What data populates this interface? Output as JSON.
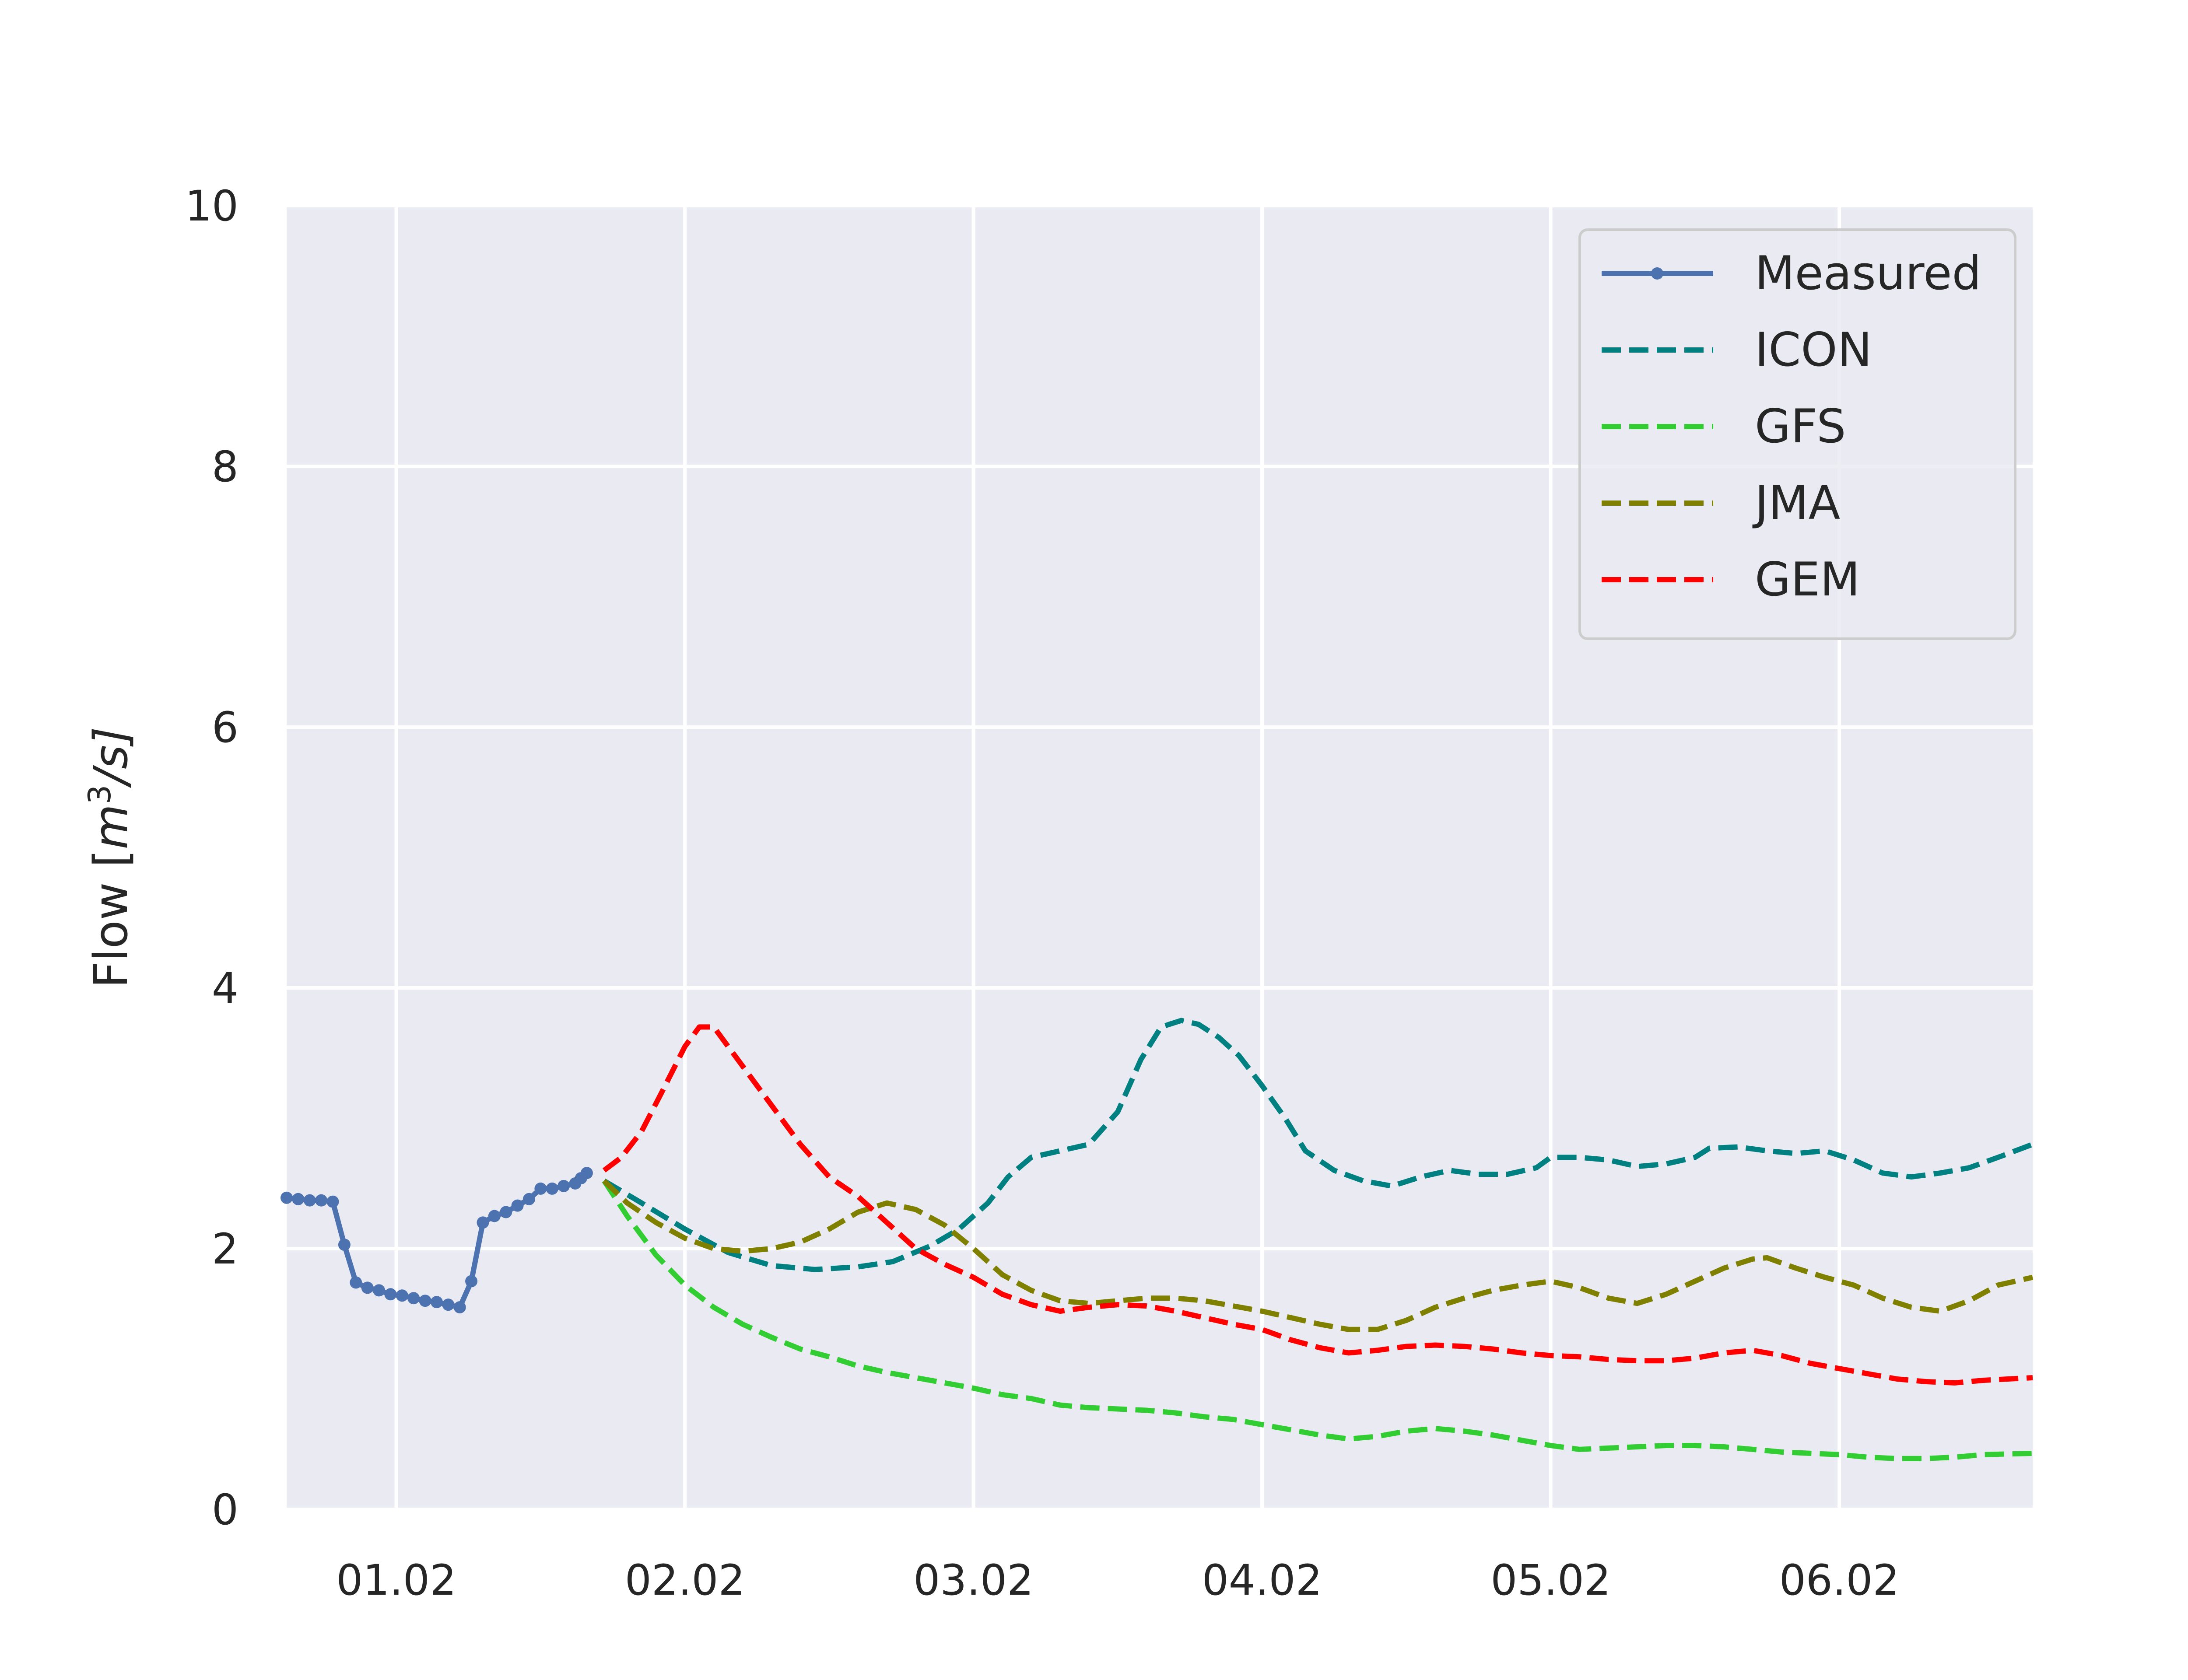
{
  "chart_data": {
    "type": "line",
    "title": "",
    "xlabel": "",
    "ylabel": "Flow [m³/s]",
    "ylabel_parts": {
      "main": "Flow [",
      "m": "m",
      "exp": "3",
      "rest": "/s]"
    },
    "x_unit": "days",
    "xlim": [
      0.62,
      6.67
    ],
    "ylim": [
      0,
      10
    ],
    "grid": true,
    "legend_position": "top-right",
    "xtick_values": [
      1,
      2,
      3,
      4,
      5,
      6
    ],
    "xtick_labels": [
      "01.02",
      "02.02",
      "03.02",
      "04.02",
      "05.02",
      "06.02"
    ],
    "ytick_values": [
      0,
      2,
      4,
      6,
      8,
      10
    ],
    "ytick_labels": [
      "0",
      "2",
      "4",
      "6",
      "8",
      "10"
    ],
    "colors": {
      "background": "#eaeaf2",
      "grid": "#ffffff",
      "text": "#262626"
    },
    "series": [
      {
        "name": "Measured",
        "color": "#4c72b0",
        "style": "solid-markers",
        "x": [
          0.62,
          0.66,
          0.7,
          0.74,
          0.78,
          0.82,
          0.86,
          0.9,
          0.94,
          0.98,
          1.02,
          1.06,
          1.1,
          1.14,
          1.18,
          1.22,
          1.26,
          1.3,
          1.34,
          1.38,
          1.42,
          1.46,
          1.5,
          1.54,
          1.58,
          1.62,
          1.64,
          1.66
        ],
        "y": [
          2.39,
          2.38,
          2.37,
          2.37,
          2.36,
          2.03,
          1.74,
          1.7,
          1.68,
          1.65,
          1.64,
          1.62,
          1.6,
          1.59,
          1.57,
          1.55,
          1.75,
          2.2,
          2.25,
          2.28,
          2.33,
          2.38,
          2.46,
          2.46,
          2.48,
          2.5,
          2.54,
          2.58
        ]
      },
      {
        "name": "ICON",
        "color": "#008080",
        "style": "dashed",
        "x": [
          1.72,
          1.85,
          2.0,
          2.15,
          2.3,
          2.45,
          2.6,
          2.72,
          2.85,
          2.95,
          3.05,
          3.12,
          3.2,
          3.3,
          3.4,
          3.5,
          3.58,
          3.65,
          3.72,
          3.78,
          3.85,
          3.92,
          4.0,
          4.08,
          4.15,
          4.25,
          4.35,
          4.45,
          4.55,
          4.65,
          4.75,
          4.85,
          4.95,
          5.0,
          5.1,
          5.2,
          5.3,
          5.4,
          5.5,
          5.55,
          5.65,
          5.75,
          5.85,
          5.95,
          6.05,
          6.15,
          6.25,
          6.35,
          6.45,
          6.55,
          6.67
        ],
        "y": [
          2.52,
          2.35,
          2.15,
          1.97,
          1.87,
          1.84,
          1.86,
          1.9,
          2.02,
          2.15,
          2.35,
          2.55,
          2.7,
          2.75,
          2.8,
          3.05,
          3.45,
          3.7,
          3.75,
          3.72,
          3.62,
          3.48,
          3.25,
          3.0,
          2.75,
          2.6,
          2.52,
          2.48,
          2.55,
          2.6,
          2.57,
          2.57,
          2.62,
          2.7,
          2.7,
          2.68,
          2.63,
          2.65,
          2.7,
          2.77,
          2.78,
          2.75,
          2.73,
          2.75,
          2.68,
          2.58,
          2.55,
          2.58,
          2.62,
          2.7,
          2.8
        ]
      },
      {
        "name": "GFS",
        "color": "#32cd32",
        "style": "dashed",
        "x": [
          1.72,
          1.8,
          1.9,
          2.0,
          2.1,
          2.2,
          2.3,
          2.4,
          2.5,
          2.6,
          2.7,
          2.8,
          2.9,
          3.0,
          3.1,
          3.2,
          3.3,
          3.4,
          3.5,
          3.6,
          3.7,
          3.8,
          3.9,
          4.0,
          4.1,
          4.2,
          4.3,
          4.4,
          4.5,
          4.6,
          4.7,
          4.8,
          4.9,
          5.0,
          5.1,
          5.2,
          5.3,
          5.4,
          5.5,
          5.6,
          5.7,
          5.8,
          5.9,
          6.0,
          6.1,
          6.2,
          6.3,
          6.4,
          6.5,
          6.67
        ],
        "y": [
          2.52,
          2.25,
          1.95,
          1.72,
          1.55,
          1.42,
          1.32,
          1.23,
          1.17,
          1.1,
          1.05,
          1.01,
          0.97,
          0.93,
          0.88,
          0.85,
          0.8,
          0.78,
          0.77,
          0.76,
          0.74,
          0.71,
          0.69,
          0.65,
          0.61,
          0.57,
          0.54,
          0.56,
          0.6,
          0.62,
          0.6,
          0.57,
          0.53,
          0.49,
          0.46,
          0.47,
          0.48,
          0.49,
          0.49,
          0.48,
          0.46,
          0.44,
          0.43,
          0.42,
          0.4,
          0.39,
          0.39,
          0.4,
          0.42,
          0.43
        ]
      },
      {
        "name": "JMA",
        "color": "#808000",
        "style": "dashed",
        "x": [
          1.72,
          1.8,
          1.9,
          2.0,
          2.1,
          2.2,
          2.3,
          2.4,
          2.5,
          2.6,
          2.7,
          2.8,
          2.9,
          3.0,
          3.1,
          3.2,
          3.3,
          3.4,
          3.5,
          3.6,
          3.7,
          3.8,
          3.9,
          4.0,
          4.1,
          4.2,
          4.3,
          4.4,
          4.5,
          4.6,
          4.7,
          4.8,
          4.9,
          5.0,
          5.1,
          5.2,
          5.3,
          5.4,
          5.5,
          5.6,
          5.7,
          5.75,
          5.85,
          5.95,
          6.05,
          6.15,
          6.25,
          6.35,
          6.45,
          6.55,
          6.67
        ],
        "y": [
          2.52,
          2.35,
          2.2,
          2.08,
          2.0,
          1.98,
          2.0,
          2.05,
          2.15,
          2.28,
          2.35,
          2.3,
          2.18,
          2.0,
          1.8,
          1.68,
          1.6,
          1.58,
          1.6,
          1.62,
          1.62,
          1.6,
          1.56,
          1.52,
          1.47,
          1.42,
          1.38,
          1.38,
          1.45,
          1.55,
          1.62,
          1.68,
          1.72,
          1.75,
          1.7,
          1.62,
          1.58,
          1.65,
          1.75,
          1.85,
          1.92,
          1.93,
          1.85,
          1.78,
          1.72,
          1.62,
          1.55,
          1.52,
          1.6,
          1.72,
          1.78
        ]
      },
      {
        "name": "GEM",
        "color": "#ff0000",
        "style": "dashed",
        "x": [
          1.72,
          1.78,
          1.85,
          1.92,
          2.0,
          2.05,
          2.1,
          2.15,
          2.2,
          2.3,
          2.4,
          2.5,
          2.6,
          2.7,
          2.8,
          2.9,
          3.0,
          3.1,
          3.2,
          3.3,
          3.4,
          3.5,
          3.6,
          3.7,
          3.8,
          3.9,
          4.0,
          4.1,
          4.2,
          4.3,
          4.4,
          4.5,
          4.6,
          4.7,
          4.8,
          4.9,
          5.0,
          5.1,
          5.2,
          5.3,
          5.4,
          5.5,
          5.6,
          5.7,
          5.8,
          5.9,
          6.0,
          6.1,
          6.2,
          6.3,
          6.4,
          6.5,
          6.67
        ],
        "y": [
          2.6,
          2.7,
          2.9,
          3.2,
          3.55,
          3.7,
          3.7,
          3.55,
          3.4,
          3.1,
          2.8,
          2.55,
          2.4,
          2.2,
          2.0,
          1.88,
          1.78,
          1.65,
          1.57,
          1.52,
          1.55,
          1.57,
          1.56,
          1.52,
          1.47,
          1.42,
          1.38,
          1.3,
          1.24,
          1.2,
          1.22,
          1.25,
          1.26,
          1.25,
          1.23,
          1.2,
          1.18,
          1.17,
          1.15,
          1.14,
          1.14,
          1.16,
          1.2,
          1.22,
          1.18,
          1.12,
          1.08,
          1.04,
          1.0,
          0.98,
          0.97,
          0.99,
          1.01
        ]
      }
    ]
  }
}
